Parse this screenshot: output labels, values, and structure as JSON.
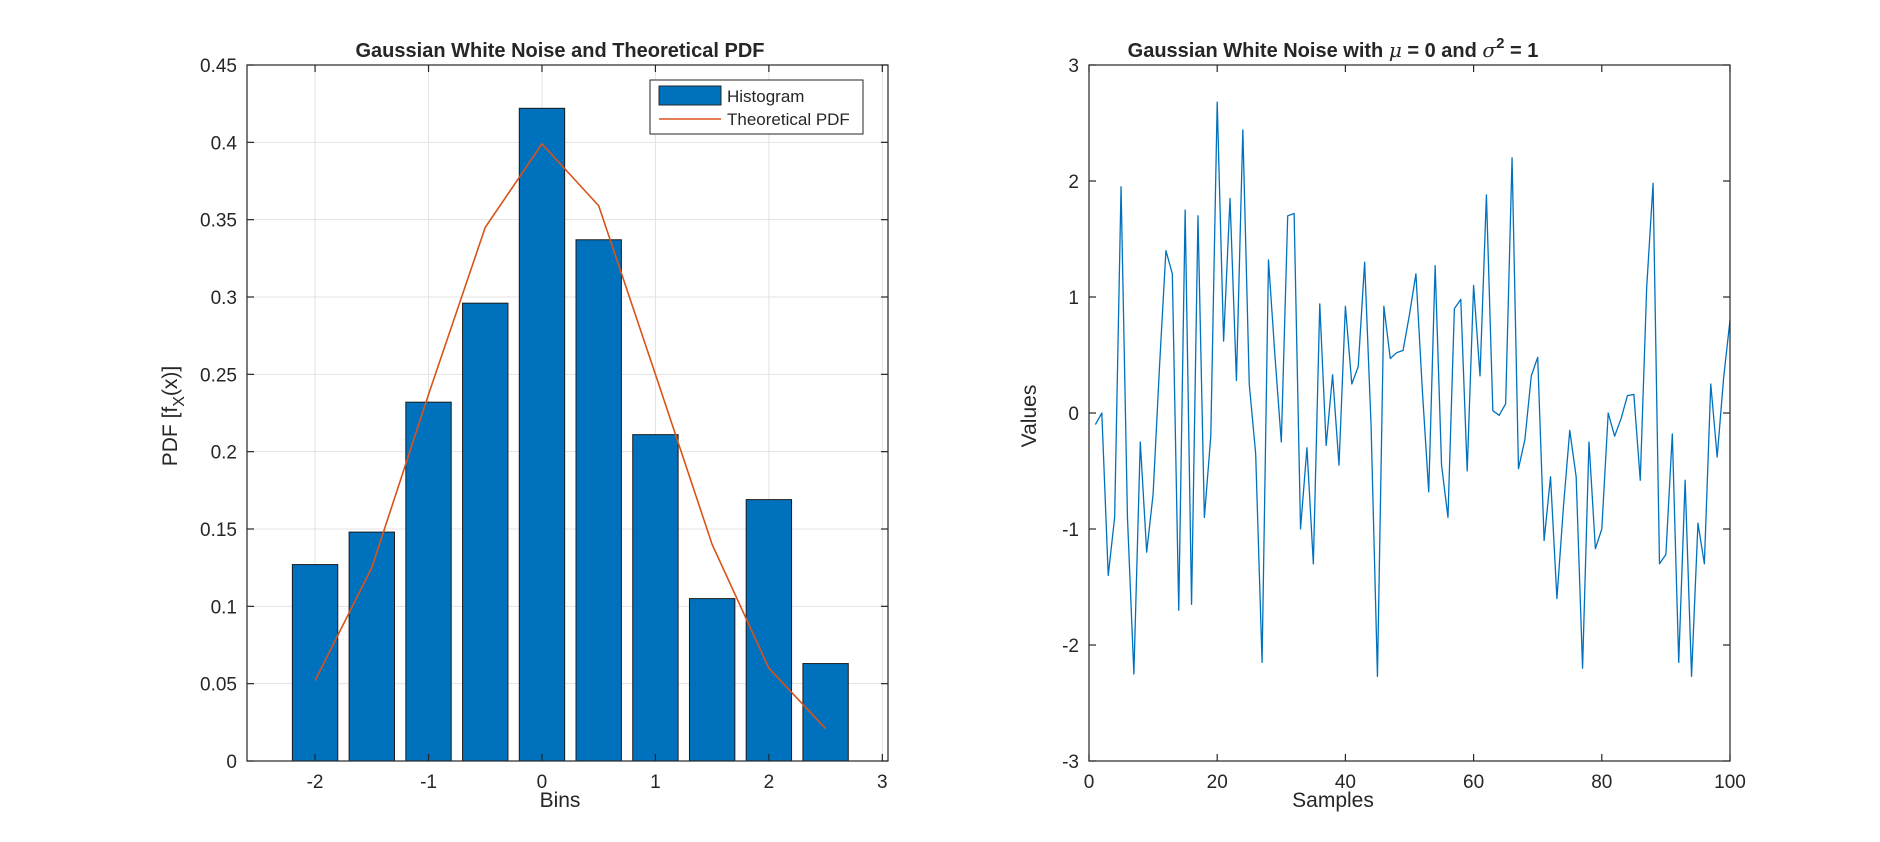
{
  "chart_data": [
    {
      "type": "bar",
      "title": "Gaussian White Noise and Theoretical PDF",
      "xlabel": "Bins",
      "ylabel_main": "PDF  [f",
      "ylabel_sub": "X",
      "ylabel_end": "(x)]",
      "xlim": [
        -2.6,
        3.05
      ],
      "ylim": [
        0,
        0.45
      ],
      "xticks": [
        -2,
        -1,
        0,
        1,
        2,
        3
      ],
      "xtick_labels": [
        "-2",
        "-1",
        "0",
        "1",
        "2",
        "3"
      ],
      "yticks": [
        0,
        0.05,
        0.1,
        0.15,
        0.2,
        0.25,
        0.3,
        0.35,
        0.4,
        0.45
      ],
      "ytick_labels": [
        "0",
        "0.05",
        "0.1",
        "0.15",
        "0.2",
        "0.25",
        "0.3",
        "0.35",
        "0.4",
        "0.45"
      ],
      "grid": true,
      "legend_position": "top-right",
      "bar_width": 0.4,
      "series": [
        {
          "name": "Histogram",
          "type": "bar",
          "color": "#0072BD",
          "x": [
            -2.0,
            -1.5,
            -1.0,
            -0.5,
            0.0,
            0.5,
            1.0,
            1.5,
            2.0,
            2.5
          ],
          "values": [
            0.127,
            0.148,
            0.232,
            0.296,
            0.422,
            0.337,
            0.211,
            0.105,
            0.169,
            0.063
          ]
        },
        {
          "name": "Theoretical PDF",
          "type": "line",
          "color": "#D95319",
          "x": [
            -2.0,
            -1.5,
            -1.0,
            -0.5,
            0.0,
            0.5,
            1.0,
            1.5,
            2.0,
            2.5
          ],
          "values": [
            0.052,
            0.125,
            0.237,
            0.345,
            0.399,
            0.359,
            0.25,
            0.14,
            0.06,
            0.021
          ]
        }
      ]
    },
    {
      "type": "line",
      "title_pre": "Gaussian White Noise with ",
      "title_mu": "μ",
      "title_mid": " = 0 and ",
      "title_sigma": "σ",
      "title_exp": "2",
      "title_post": " = 1",
      "xlabel": "Samples",
      "ylabel": "Values",
      "xlim": [
        0,
        100
      ],
      "ylim": [
        -3,
        3
      ],
      "xticks": [
        0,
        20,
        40,
        60,
        80,
        100
      ],
      "xtick_labels": [
        "0",
        "20",
        "40",
        "60",
        "80",
        "100"
      ],
      "yticks": [
        -3,
        -2,
        -1,
        0,
        1,
        2,
        3
      ],
      "ytick_labels": [
        "-3",
        "-2",
        "-1",
        "0",
        "1",
        "2",
        "3"
      ],
      "grid": false,
      "series": [
        {
          "color": "#0072BD",
          "x": [
            1,
            2,
            3,
            4,
            5,
            6,
            7,
            8,
            9,
            10,
            11,
            12,
            13,
            14,
            15,
            16,
            17,
            18,
            19,
            20,
            21,
            22,
            23,
            24,
            25,
            26,
            27,
            28,
            29,
            30,
            31,
            32,
            33,
            34,
            35,
            36,
            37,
            38,
            39,
            40,
            41,
            42,
            43,
            44,
            45,
            46,
            47,
            48,
            49,
            50,
            51,
            52,
            53,
            54,
            55,
            56,
            57,
            58,
            59,
            60,
            61,
            62,
            63,
            64,
            65,
            66,
            67,
            68,
            69,
            70,
            71,
            72,
            73,
            74,
            75,
            76,
            77,
            78,
            79,
            80,
            81,
            82,
            83,
            84,
            85,
            86,
            87,
            88,
            89,
            90,
            91,
            92,
            93,
            94,
            95,
            96,
            97,
            98,
            99,
            100
          ],
          "values": [
            -0.1,
            0.0,
            -1.4,
            -0.9,
            1.95,
            -0.9,
            -2.25,
            -0.25,
            -1.2,
            -0.7,
            0.4,
            1.4,
            1.2,
            -1.7,
            1.75,
            -1.65,
            1.7,
            -0.9,
            -0.2,
            2.68,
            0.62,
            1.85,
            0.28,
            2.44,
            0.25,
            -0.35,
            -2.15,
            1.32,
            0.5,
            -0.25,
            1.7,
            1.72,
            -1.0,
            -0.3,
            -1.3,
            0.94,
            -0.28,
            0.33,
            -0.45,
            0.92,
            0.25,
            0.4,
            1.3,
            -0.1,
            -2.27,
            0.92,
            0.47,
            0.52,
            0.54,
            0.85,
            1.2,
            0.2,
            -0.68,
            1.27,
            -0.45,
            -0.9,
            0.9,
            0.98,
            -0.5,
            1.1,
            0.32,
            1.88,
            0.02,
            -0.02,
            0.08,
            2.2,
            -0.48,
            -0.23,
            0.32,
            0.48,
            -1.1,
            -0.55,
            -1.6,
            -0.82,
            -0.15,
            -0.55,
            -2.2,
            -0.25,
            -1.17,
            -1.0,
            0.0,
            -0.2,
            -0.05,
            0.15,
            0.16,
            -0.58,
            1.08,
            1.98,
            -1.3,
            -1.22,
            -0.18,
            -2.15,
            -0.58,
            -2.27,
            -0.95,
            -1.3,
            0.25,
            -0.38,
            0.3,
            0.8
          ]
        }
      ]
    }
  ]
}
